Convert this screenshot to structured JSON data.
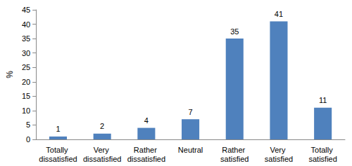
{
  "chart_data": {
    "type": "bar",
    "categories": [
      "Totally dissatisfied",
      "Very dissatisfied",
      "Rather dissatisfied",
      "Neutral",
      "Rather satisfied",
      "Very satisfied",
      "Totally satisfied"
    ],
    "values": [
      1,
      2,
      4,
      7,
      35,
      41,
      11
    ],
    "color": "#4f81bd",
    "y_label": "%",
    "ylim": [
      0,
      45
    ],
    "yticks": [
      0,
      5,
      10,
      15,
      20,
      25,
      30,
      35,
      40,
      45
    ],
    "grid": false,
    "data_labels": true
  }
}
